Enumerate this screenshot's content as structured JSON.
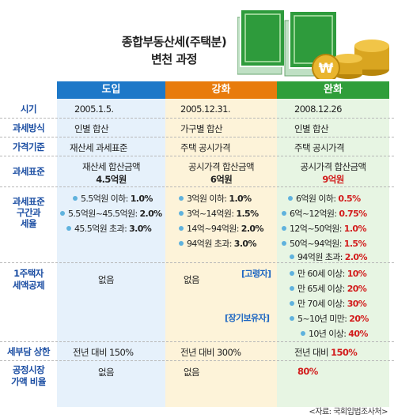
{
  "title_line1": "종합부동산세(주택분)",
  "title_line2": "변천 과정",
  "columns": [
    "도입",
    "강화",
    "완화"
  ],
  "colors": {
    "col1_header": "#1d78c8",
    "col2_header": "#e87b0c",
    "col3_header": "#2f9e3a",
    "col1_bg": "#e6f1fb",
    "col2_bg": "#fdf3d9",
    "col3_bg": "#e7f5e3",
    "label": "#1d4fa3",
    "emphasis_red": "#d21c1c",
    "emphasis_blue": "#1d66c2"
  },
  "rows": {
    "period": {
      "label": "시기",
      "c1": "2005.1.5.",
      "c2": "2005.12.31.",
      "c3": "2008.12.26"
    },
    "method": {
      "label": "과세방식",
      "c1": "인별 합산",
      "c2": "가구별 합산",
      "c3": "인별 합산"
    },
    "price_basis": {
      "label": "가격기준",
      "c1": "재산세 과세표준",
      "c2": "주택 공시가격",
      "c3": "주택 공시가격"
    },
    "standard": {
      "label": "과세표준",
      "c1_line1": "재산세 합산금액",
      "c1_line2": "4.5억원",
      "c2_line1": "공시가격 합산금액",
      "c2_line2": "6억원",
      "c3_line1": "공시가격 합산금액",
      "c3_line2": "9억원"
    },
    "brackets": {
      "label_line1": "과세표준",
      "label_line2": "구간과",
      "label_line3": "세율",
      "c1": [
        {
          "range": "5.5억원 이하:",
          "rate": "1.0%"
        },
        {
          "range": "5.5억원~45.5억원:",
          "rate": "2.0%"
        },
        {
          "range": "45.5억원 초과:",
          "rate": "3.0%"
        }
      ],
      "c2": [
        {
          "range": "3억원 이하:",
          "rate": "1.0%"
        },
        {
          "range": "3억~14억원:",
          "rate": "1.5%"
        },
        {
          "range": "14억~94억원:",
          "rate": "2.0%"
        },
        {
          "range": "94억원 초과:",
          "rate": "3.0%"
        }
      ],
      "c3": [
        {
          "range": "6억원 이하:",
          "rate": "0.5%"
        },
        {
          "range": "6억~12억원:",
          "rate": "0.75%"
        },
        {
          "range": "12억~50억원:",
          "rate": "1.0%"
        },
        {
          "range": "50억~94억원:",
          "rate": "1.5%"
        },
        {
          "range": "94억원 초과:",
          "rate": "2.0%"
        }
      ]
    },
    "deduction": {
      "label_line1": "1주택자",
      "label_line2": "세액공제",
      "c1": "없음",
      "c2": "없음",
      "group1_label": "[고령자]",
      "group2_label": "[장기보유자]",
      "c3": [
        {
          "range": "만 60세 이상:",
          "rate": "10%"
        },
        {
          "range": "만 65세 이상:",
          "rate": "20%"
        },
        {
          "range": "만 70세 이상:",
          "rate": "30%"
        },
        {
          "range": "5~10년 미만:",
          "rate": "20%"
        },
        {
          "range": "10년 이상:",
          "rate": "40%"
        }
      ]
    },
    "cap": {
      "label": "세부담 상한",
      "c1": "전년 대비 150%",
      "c2": "전년 대비 300%",
      "c3_prefix": "전년 대비",
      "c3_value": "150%"
    },
    "ratio": {
      "label_line1": "공정시장",
      "label_line2": "가액 비율",
      "c1": "없음",
      "c2": "없음",
      "c3": "80%"
    }
  },
  "illustration": {
    "coin_symbol": "₩"
  },
  "source": "<자료: 국회입법조사처>"
}
